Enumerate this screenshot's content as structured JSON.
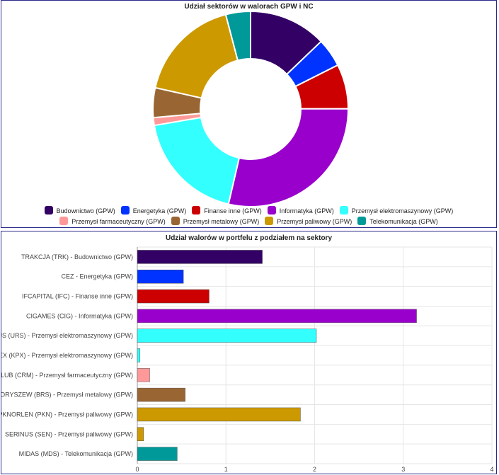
{
  "chart_data": [
    {
      "type": "pie",
      "title": "Udział sektorów w walorach GPW i NC",
      "categories": [
        "Budownictwo (GPW)",
        "Energetyka (GPW)",
        "Finanse inne (GPW)",
        "Informatyka (GPW)",
        "Przemysł elektromaszynowy (GPW)",
        "Przemysł farmaceutyczny (GPW)",
        "Przemysł metalowy (GPW)",
        "Przemysł paliwowy (GPW)",
        "Telekomunikacja (GPW)"
      ],
      "values": [
        1.41,
        0.52,
        0.81,
        3.15,
        2.05,
        0.14,
        0.54,
        1.91,
        0.45
      ],
      "colors": [
        "#330066",
        "#0033ff",
        "#cc0000",
        "#9900cc",
        "#33ffff",
        "#ff9999",
        "#996633",
        "#cc9900",
        "#009999"
      ],
      "donut": true,
      "legend_position": "bottom"
    },
    {
      "type": "bar",
      "orientation": "horizontal",
      "title": "Udział walorów w portfelu z podziałem na sektory",
      "categories": [
        "TRAKCJA (TRK) - Budownictwo (GPW)",
        "CEZ - Energetyka (GPW)",
        "IFCAPITAL (IFC) - Finanse inne (GPW)",
        "CIGAMES (CIG) - Informatyka (GPW)",
        "URSUS (URS) - Przemysł elektromaszynowy (GPW)",
        "ELEKTROTIMEX (KPX) - Przemysł elektromaszynowy (GPW)",
        "BIOMEDLUB (CRM) - Przemysł farmaceutyczny (GPW)",
        "BORYSZEW (BRS) - Przemysł metalowy (GPW)",
        "PKNORLEN (PKN) - Przemysł paliwowy (GPW)",
        "SERINUS (SEN) - Przemysł paliwowy (GPW)",
        "MIDAS (MDS) - Telekomunikacja (GPW)"
      ],
      "values": [
        1.41,
        0.52,
        0.81,
        3.15,
        2.02,
        0.03,
        0.14,
        0.54,
        1.84,
        0.07,
        0.45
      ],
      "colors": [
        "#330066",
        "#0033ff",
        "#cc0000",
        "#9900cc",
        "#33ffff",
        "#33ffff",
        "#ff9999",
        "#996633",
        "#cc9900",
        "#cc9900",
        "#009999"
      ],
      "xlim": [
        0,
        4
      ],
      "x_ticks": [
        0,
        1,
        2,
        3,
        4
      ],
      "grid": true
    }
  ]
}
